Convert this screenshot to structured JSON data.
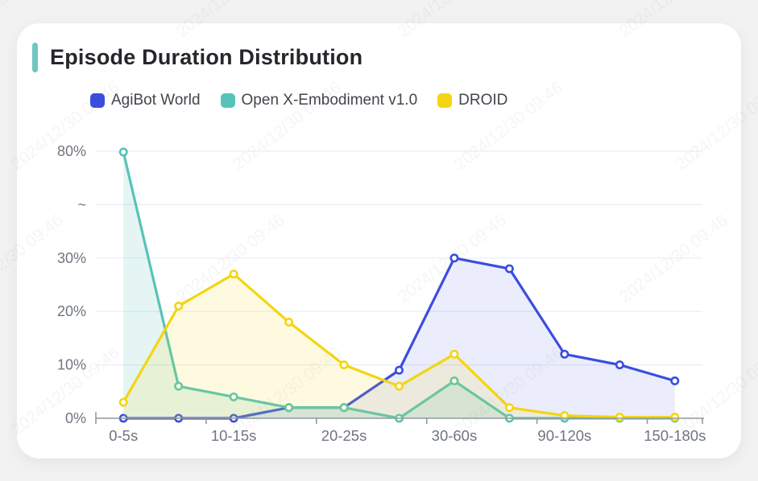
{
  "title": "Episode Duration Distribution",
  "watermark": {
    "text": "2024/12/30 09:46"
  },
  "colors": {
    "page_bg": "#f2f2f3",
    "card_bg": "#ffffff",
    "accent_bar": "#6fc8bf",
    "title_text": "#26262b",
    "axis_label": "#70757f",
    "axis_line": "#94999f",
    "gridline": "#e8edf4",
    "legend_text": "#42454c"
  },
  "chart_data": {
    "type": "line",
    "title": "Episode Duration Distribution",
    "n_points": 11,
    "x_tick_labels": [
      "0-5s",
      "10-15s",
      "20-25s",
      "30-60s",
      "90-120s",
      "150-180s"
    ],
    "x_label_point_indices": [
      0,
      2,
      4,
      6,
      8,
      10
    ],
    "y_axis": {
      "tick_labels": [
        "0%",
        "10%",
        "20%",
        "30%",
        "~",
        "80%"
      ],
      "unit": "%",
      "linear_range": [
        0,
        30
      ],
      "break_to": 80
    },
    "legend_position": "top",
    "grid": "horizontal-only",
    "series": [
      {
        "name": "AgiBot World",
        "color": "#3a4de0",
        "fill_opacity": 0.1,
        "values": [
          0,
          0,
          0,
          2,
          2,
          9,
          30,
          28,
          12,
          10,
          7
        ]
      },
      {
        "name": "Open X-Embodiment v1.0",
        "color": "#57c3b8",
        "fill_opacity": 0.16,
        "values": [
          79.6,
          6,
          4,
          2,
          2,
          0,
          7,
          0,
          0,
          0,
          0
        ]
      },
      {
        "name": "DROID",
        "color": "#f4d512",
        "fill_opacity": 0.13,
        "values": [
          3,
          21,
          27,
          18,
          10,
          6,
          12,
          2,
          0.5,
          0.2,
          0.2
        ]
      }
    ]
  }
}
